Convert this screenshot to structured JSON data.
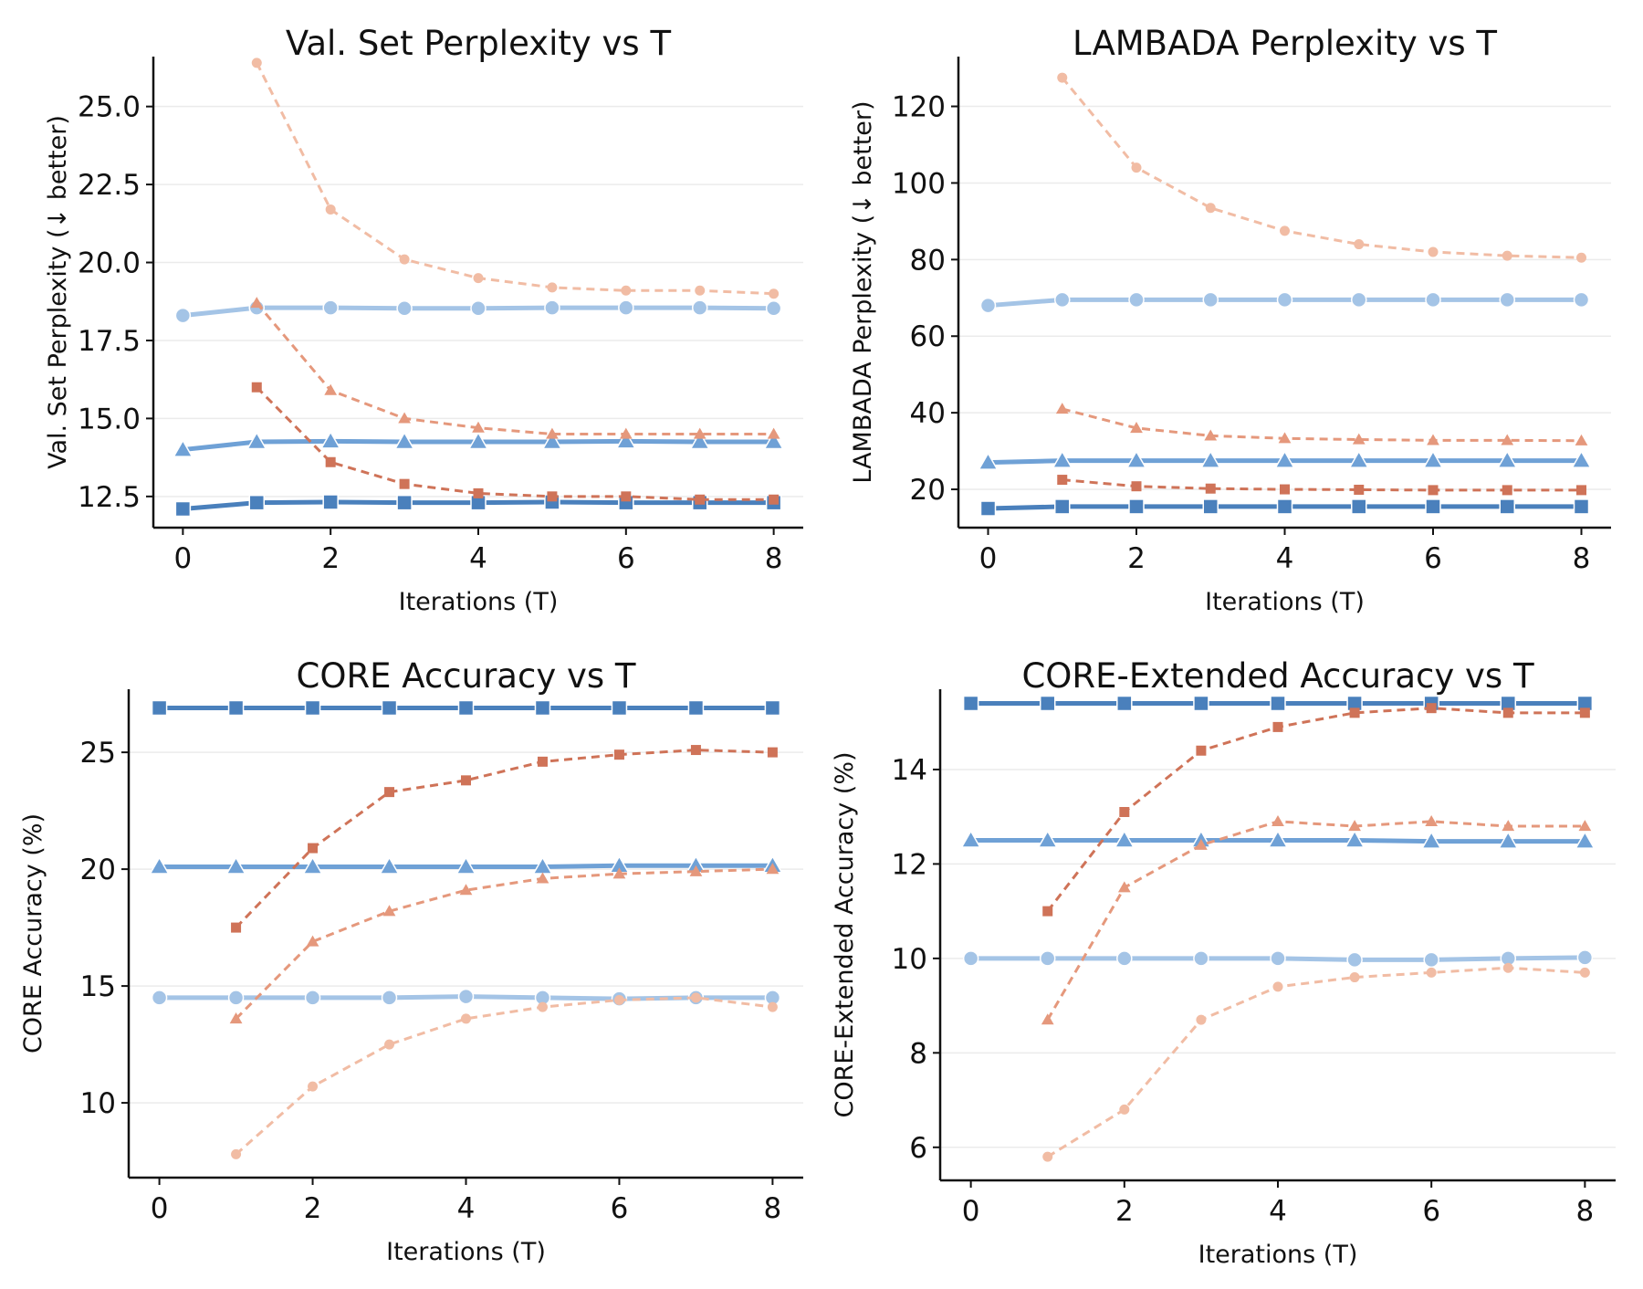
{
  "chart_data": [
    {
      "type": "line",
      "title": "Val. Set Perplexity vs T",
      "xlabel": "Iterations (T)",
      "ylabel": "Val. Set Perplexity  (↓ better)",
      "xlim": [
        -0.4,
        8.4
      ],
      "ylim": [
        11.5,
        26.6
      ],
      "xticks": [
        0,
        2,
        4,
        6,
        8
      ],
      "yticks": [
        12.5,
        15.0,
        17.5,
        20.0,
        22.5,
        25.0
      ],
      "ytick_labels": [
        "12.5",
        "15.0",
        "17.5",
        "20.0",
        "22.5",
        "25.0"
      ],
      "grid": "horizontal",
      "series": [
        {
          "style": "solid",
          "marker": "circle",
          "color": "#a4c4e6",
          "x": [
            0,
            1,
            2,
            3,
            4,
            5,
            6,
            7,
            8
          ],
          "values": [
            18.3,
            18.55,
            18.55,
            18.53,
            18.53,
            18.55,
            18.55,
            18.55,
            18.53
          ]
        },
        {
          "style": "solid",
          "marker": "triangle",
          "color": "#6fa1d6",
          "x": [
            0,
            1,
            2,
            3,
            4,
            5,
            6,
            7,
            8
          ],
          "values": [
            14.0,
            14.25,
            14.27,
            14.25,
            14.25,
            14.25,
            14.27,
            14.25,
            14.25
          ]
        },
        {
          "style": "solid",
          "marker": "square",
          "color": "#4a80bc",
          "x": [
            0,
            1,
            2,
            3,
            4,
            5,
            6,
            7,
            8
          ],
          "values": [
            12.1,
            12.3,
            12.32,
            12.3,
            12.3,
            12.32,
            12.3,
            12.3,
            12.3
          ]
        },
        {
          "style": "dashed",
          "marker": "circle",
          "color": "#f1bca4",
          "x": [
            1,
            2,
            3,
            4,
            5,
            6,
            7,
            8
          ],
          "values": [
            26.4,
            21.7,
            20.1,
            19.5,
            19.2,
            19.1,
            19.1,
            19.0
          ]
        },
        {
          "style": "dashed",
          "marker": "triangle",
          "color": "#e5987c",
          "x": [
            1,
            2,
            3,
            4,
            5,
            6,
            7,
            8
          ],
          "values": [
            18.7,
            15.9,
            15.0,
            14.7,
            14.5,
            14.5,
            14.5,
            14.5
          ]
        },
        {
          "style": "dashed",
          "marker": "square",
          "color": "#cf7358",
          "x": [
            1,
            2,
            3,
            4,
            5,
            6,
            7,
            8
          ],
          "values": [
            16.0,
            13.6,
            12.9,
            12.6,
            12.5,
            12.5,
            12.4,
            12.4
          ]
        }
      ]
    },
    {
      "type": "line",
      "title": "LAMBADA Perplexity vs T",
      "xlabel": "Iterations (T)",
      "ylabel": "LAMBADA Perplexity  (↓ better)",
      "xlim": [
        -0.4,
        8.4
      ],
      "ylim": [
        10,
        133
      ],
      "xticks": [
        0,
        2,
        4,
        6,
        8
      ],
      "yticks": [
        20,
        40,
        60,
        80,
        100,
        120
      ],
      "ytick_labels": [
        "20",
        "40",
        "60",
        "80",
        "100",
        "120"
      ],
      "grid": "horizontal",
      "series": [
        {
          "style": "solid",
          "marker": "circle",
          "color": "#a4c4e6",
          "x": [
            0,
            1,
            2,
            3,
            4,
            5,
            6,
            7,
            8
          ],
          "values": [
            68,
            69.5,
            69.5,
            69.5,
            69.5,
            69.5,
            69.5,
            69.5,
            69.5
          ]
        },
        {
          "style": "solid",
          "marker": "triangle",
          "color": "#6fa1d6",
          "x": [
            0,
            1,
            2,
            3,
            4,
            5,
            6,
            7,
            8
          ],
          "values": [
            27,
            27.5,
            27.5,
            27.5,
            27.5,
            27.5,
            27.5,
            27.5,
            27.5
          ]
        },
        {
          "style": "solid",
          "marker": "square",
          "color": "#4a80bc",
          "x": [
            0,
            1,
            2,
            3,
            4,
            5,
            6,
            7,
            8
          ],
          "values": [
            15,
            15.5,
            15.5,
            15.5,
            15.5,
            15.5,
            15.5,
            15.5,
            15.5
          ]
        },
        {
          "style": "dashed",
          "marker": "circle",
          "color": "#f1bca4",
          "x": [
            1,
            2,
            3,
            4,
            5,
            6,
            7,
            8
          ],
          "values": [
            127.5,
            104,
            93.5,
            87.5,
            84,
            82,
            81,
            80.5
          ]
        },
        {
          "style": "dashed",
          "marker": "triangle",
          "color": "#e5987c",
          "x": [
            1,
            2,
            3,
            4,
            5,
            6,
            7,
            8
          ],
          "values": [
            41,
            36,
            34,
            33.3,
            33,
            32.8,
            32.8,
            32.7
          ]
        },
        {
          "style": "dashed",
          "marker": "square",
          "color": "#cf7358",
          "x": [
            1,
            2,
            3,
            4,
            5,
            6,
            7,
            8
          ],
          "values": [
            22.5,
            20.8,
            20.2,
            20.0,
            19.9,
            19.8,
            19.8,
            19.8
          ]
        }
      ]
    },
    {
      "type": "line",
      "title": "CORE Accuracy vs T",
      "xlabel": "Iterations (T)",
      "ylabel": "CORE Accuracy (%)",
      "xlim": [
        -0.4,
        8.4
      ],
      "ylim": [
        6.8,
        27.7
      ],
      "xticks": [
        0,
        2,
        4,
        6,
        8
      ],
      "yticks": [
        10,
        15,
        20,
        25
      ],
      "ytick_labels": [
        "10",
        "15",
        "20",
        "25"
      ],
      "grid": "horizontal",
      "series": [
        {
          "style": "solid",
          "marker": "square",
          "color": "#4a80bc",
          "x": [
            0,
            1,
            2,
            3,
            4,
            5,
            6,
            7,
            8
          ],
          "values": [
            26.9,
            26.9,
            26.9,
            26.9,
            26.9,
            26.9,
            26.9,
            26.9,
            26.9
          ]
        },
        {
          "style": "solid",
          "marker": "triangle",
          "color": "#6fa1d6",
          "x": [
            0,
            1,
            2,
            3,
            4,
            5,
            6,
            7,
            8
          ],
          "values": [
            20.1,
            20.1,
            20.1,
            20.1,
            20.1,
            20.1,
            20.15,
            20.15,
            20.15
          ]
        },
        {
          "style": "solid",
          "marker": "circle",
          "color": "#a4c4e6",
          "x": [
            0,
            1,
            2,
            3,
            4,
            5,
            6,
            7,
            8
          ],
          "values": [
            14.5,
            14.5,
            14.5,
            14.5,
            14.55,
            14.5,
            14.45,
            14.5,
            14.5
          ]
        },
        {
          "style": "dashed",
          "marker": "square",
          "color": "#cf7358",
          "x": [
            1,
            2,
            3,
            4,
            5,
            6,
            7,
            8
          ],
          "values": [
            17.5,
            20.9,
            23.3,
            23.8,
            24.6,
            24.9,
            25.1,
            25.0
          ]
        },
        {
          "style": "dashed",
          "marker": "triangle",
          "color": "#e5987c",
          "x": [
            1,
            2,
            3,
            4,
            5,
            6,
            7,
            8
          ],
          "values": [
            13.6,
            16.9,
            18.2,
            19.1,
            19.6,
            19.8,
            19.9,
            20.0
          ]
        },
        {
          "style": "dashed",
          "marker": "circle",
          "color": "#f1bca4",
          "x": [
            1,
            2,
            3,
            4,
            5,
            6,
            7,
            8
          ],
          "values": [
            7.8,
            10.7,
            12.5,
            13.6,
            14.1,
            14.4,
            14.5,
            14.1
          ]
        }
      ]
    },
    {
      "type": "line",
      "title": "CORE-Extended Accuracy vs T",
      "xlabel": "Iterations (T)",
      "ylabel": "CORE-Extended Accuracy (%)",
      "xlim": [
        -0.4,
        8.4
      ],
      "ylim": [
        5.3,
        15.7
      ],
      "xticks": [
        0,
        2,
        4,
        6,
        8
      ],
      "yticks": [
        6,
        8,
        10,
        12,
        14
      ],
      "ytick_labels": [
        "6",
        "8",
        "10",
        "12",
        "14"
      ],
      "grid": "horizontal",
      "series": [
        {
          "style": "solid",
          "marker": "square",
          "color": "#4a80bc",
          "x": [
            0,
            1,
            2,
            3,
            4,
            5,
            6,
            7,
            8
          ],
          "values": [
            15.4,
            15.4,
            15.4,
            15.4,
            15.4,
            15.4,
            15.4,
            15.4,
            15.4
          ]
        },
        {
          "style": "solid",
          "marker": "triangle",
          "color": "#6fa1d6",
          "x": [
            0,
            1,
            2,
            3,
            4,
            5,
            6,
            7,
            8
          ],
          "values": [
            12.5,
            12.5,
            12.5,
            12.5,
            12.5,
            12.5,
            12.48,
            12.48,
            12.48
          ]
        },
        {
          "style": "solid",
          "marker": "circle",
          "color": "#a4c4e6",
          "x": [
            0,
            1,
            2,
            3,
            4,
            5,
            6,
            7,
            8
          ],
          "values": [
            10.0,
            10.0,
            10.0,
            10.0,
            10.0,
            9.97,
            9.97,
            10.0,
            10.02
          ]
        },
        {
          "style": "dashed",
          "marker": "square",
          "color": "#cf7358",
          "x": [
            1,
            2,
            3,
            4,
            5,
            6,
            7,
            8
          ],
          "values": [
            11.0,
            13.1,
            14.4,
            14.9,
            15.2,
            15.3,
            15.2,
            15.2
          ]
        },
        {
          "style": "dashed",
          "marker": "triangle",
          "color": "#e5987c",
          "x": [
            1,
            2,
            3,
            4,
            5,
            6,
            7,
            8
          ],
          "values": [
            8.7,
            11.5,
            12.4,
            12.9,
            12.8,
            12.9,
            12.8,
            12.8
          ]
        },
        {
          "style": "dashed",
          "marker": "circle",
          "color": "#f1bca4",
          "x": [
            1,
            2,
            3,
            4,
            5,
            6,
            7,
            8
          ],
          "values": [
            5.8,
            6.8,
            8.7,
            9.4,
            9.6,
            9.7,
            9.8,
            9.7
          ]
        }
      ]
    }
  ]
}
